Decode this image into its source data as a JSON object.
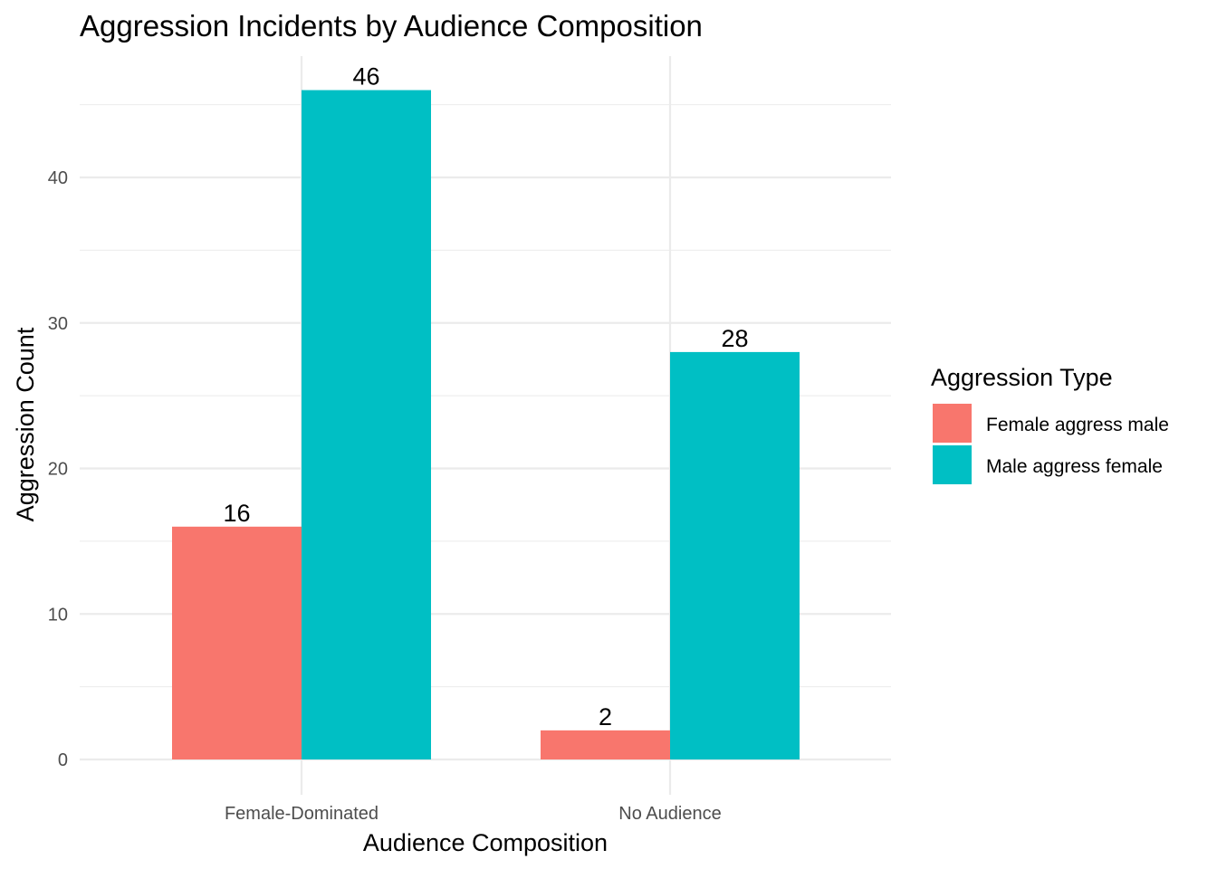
{
  "chart_data": {
    "type": "bar",
    "title": "Aggression Incidents by Audience Composition",
    "xlabel": "Audience Composition",
    "ylabel": "Aggression Count",
    "categories": [
      "Female-Dominated",
      "No Audience"
    ],
    "series": [
      {
        "name": "Female aggress male",
        "color": "#F8766D",
        "values": [
          16,
          2
        ]
      },
      {
        "name": "Male aggress female",
        "color": "#00BFC4",
        "values": [
          46,
          28
        ]
      }
    ],
    "ylim": [
      0,
      48
    ],
    "yticks": [
      0,
      10,
      20,
      30,
      40
    ],
    "grid": true,
    "legend": {
      "title": "Aggression Type",
      "position": "right"
    },
    "data_labels": true
  }
}
